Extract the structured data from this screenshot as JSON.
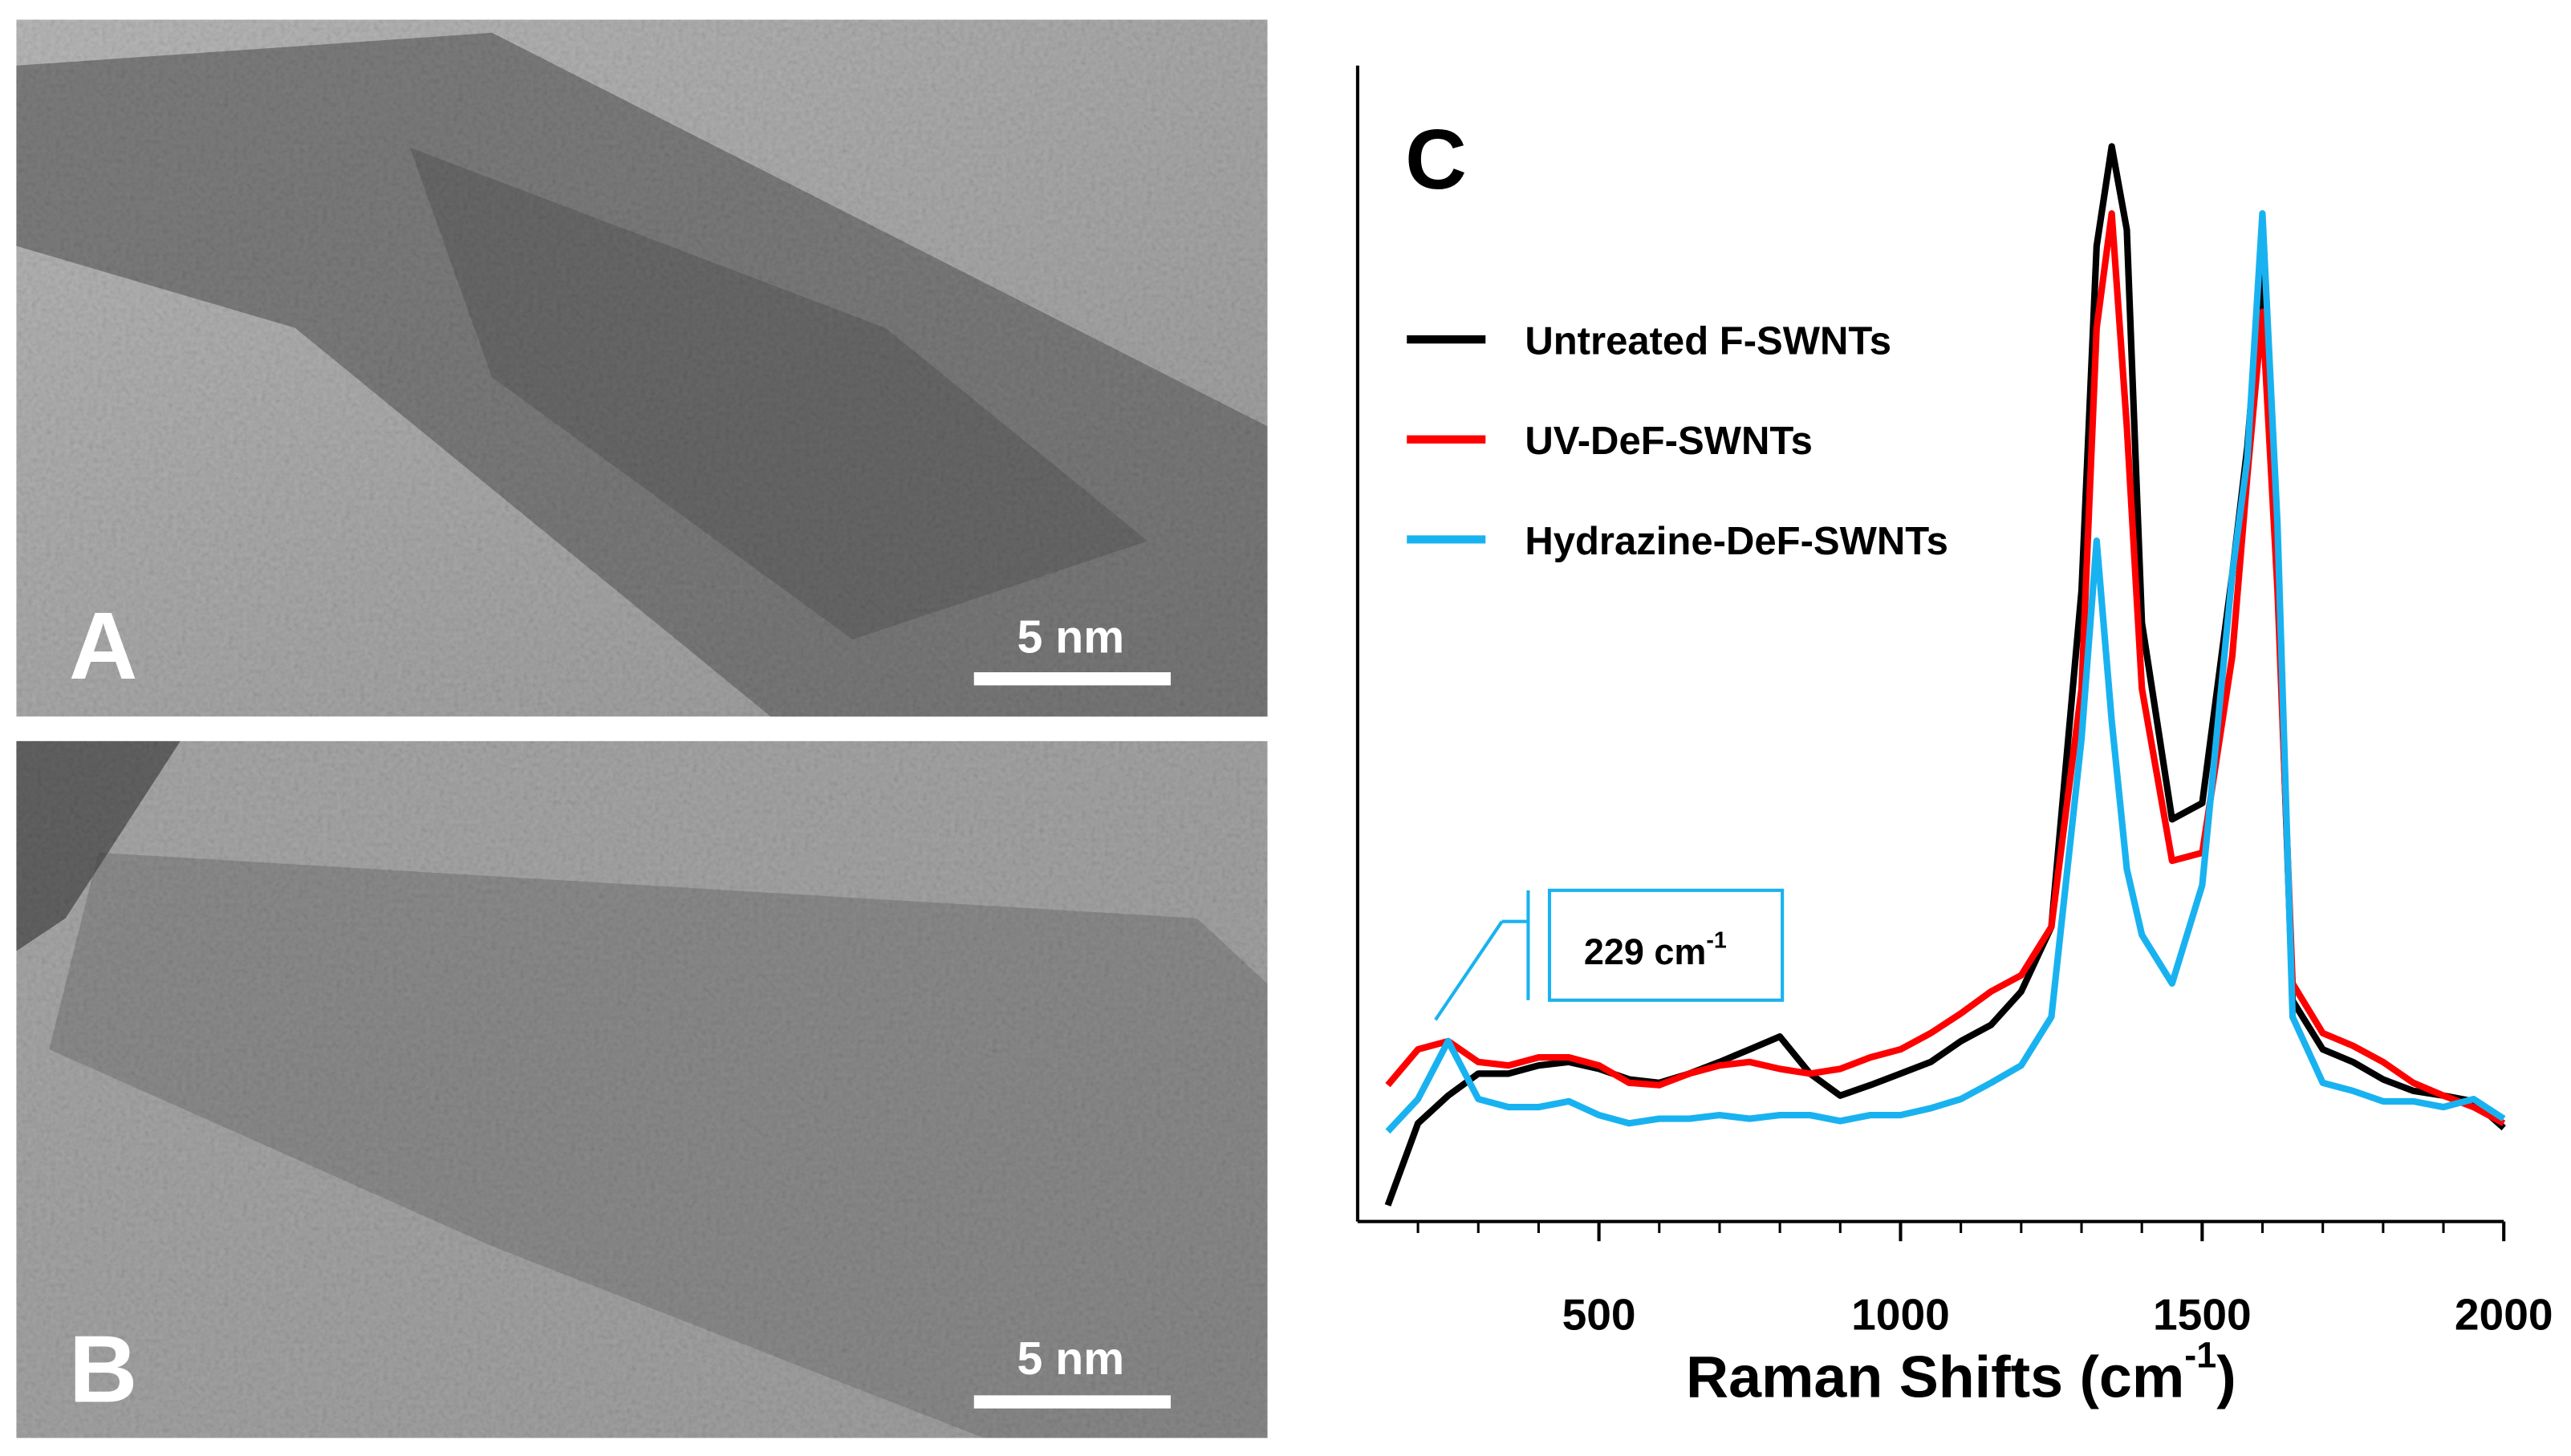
{
  "panels": [
    {
      "label": "A",
      "scale_bar": "5 nm"
    },
    {
      "label": "B",
      "scale_bar": "5 nm"
    }
  ],
  "chart_data": {
    "type": "line",
    "panel_label": "C",
    "xlabel": "Raman Shifts (cm",
    "xlabel_superscript": "-1",
    "xlabel_end": ")",
    "x": [
      150,
      200,
      250,
      300,
      350,
      400,
      450,
      500,
      550,
      600,
      650,
      700,
      750,
      800,
      850,
      900,
      950,
      1000,
      1050,
      1100,
      1150,
      1200,
      1250,
      1300,
      1325,
      1350,
      1375,
      1400,
      1450,
      1500,
      1550,
      1575,
      1600,
      1625,
      1650,
      1700,
      1750,
      1800,
      1850,
      1900,
      1950,
      2000
    ],
    "series": [
      {
        "name": "Untreated F-SWNTs",
        "color": "#000000",
        "values": [
          1.4,
          8.5,
          10.9,
          12.8,
          12.8,
          13.5,
          13.8,
          13.2,
          12.3,
          12,
          12.8,
          13.8,
          14.9,
          16,
          12.8,
          10.9,
          11.8,
          12.8,
          13.8,
          15.6,
          17,
          19.9,
          25.5,
          54.6,
          84.4,
          93,
          85.8,
          51.8,
          34.8,
          36.2,
          56,
          67,
          83,
          56,
          19.1,
          14.9,
          13.8,
          12.3,
          11.3,
          10.9,
          10.4,
          8.1
        ]
      },
      {
        "name": "UV-DeF-SWNTs",
        "color": "#ff0000",
        "values": [
          11.8,
          14.9,
          15.6,
          13.8,
          13.5,
          14.2,
          14.2,
          13.5,
          12,
          11.8,
          12.8,
          13.5,
          13.8,
          13.2,
          12.8,
          13.2,
          14.2,
          14.9,
          16.3,
          18,
          19.9,
          21.3,
          25.5,
          46.1,
          77.3,
          87.2,
          68.8,
          46.1,
          31.2,
          31.9,
          48.9,
          64.5,
          78.7,
          54.6,
          20.6,
          16.3,
          15.2,
          13.8,
          12,
          10.9,
          9.9,
          8.5
        ]
      },
      {
        "name": "Hydrazine-DeF-SWNTs",
        "color": "#19b2f0",
        "values": [
          7.8,
          10.6,
          15.6,
          10.6,
          9.9,
          9.9,
          10.4,
          9.2,
          8.5,
          8.9,
          8.9,
          9.2,
          8.9,
          9.2,
          9.2,
          8.7,
          9.2,
          9.2,
          9.8,
          10.6,
          12,
          13.5,
          17.7,
          41.8,
          58.9,
          43.3,
          30.5,
          24.8,
          20.6,
          29.1,
          56,
          66,
          87.2,
          60.3,
          17.7,
          12,
          11.3,
          10.4,
          10.4,
          9.9,
          10.6,
          8.9
        ]
      }
    ],
    "annotation": {
      "x": 229,
      "text": "229 cm",
      "superscript": "-1"
    },
    "xlim": [
      100,
      2000
    ],
    "xticks": [
      500,
      1000,
      1500,
      2000
    ],
    "xminorticks": [
      200,
      300,
      400,
      600,
      700,
      800,
      900,
      1100,
      1200,
      1300,
      1400,
      1600,
      1700,
      1800,
      1900
    ],
    "ylim": [
      0,
      100
    ]
  }
}
